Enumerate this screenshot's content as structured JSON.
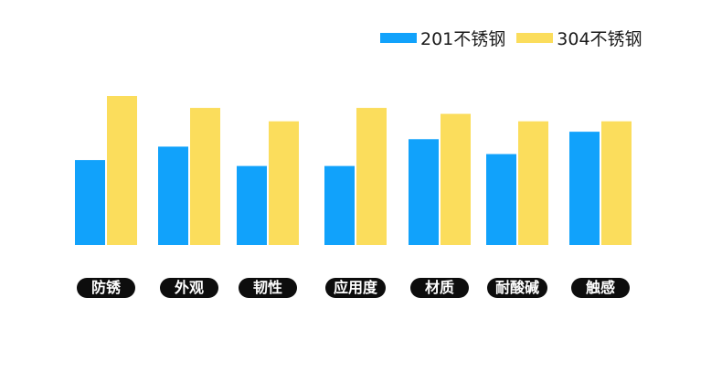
{
  "colors": {
    "series_201": "#11a2fb",
    "series_304": "#fbdd5c"
  },
  "chart_data": {
    "type": "bar",
    "categories": [
      "防锈",
      "外观",
      "韧性",
      "应用度",
      "材质",
      "耐酸碱",
      "触感"
    ],
    "series": [
      {
        "name": "201不锈钢",
        "values": [
          57,
          66,
          53,
          53,
          71,
          61,
          76
        ]
      },
      {
        "name": "304不锈钢",
        "values": [
          100,
          92,
          83,
          92,
          88,
          83,
          83
        ]
      }
    ],
    "title": "",
    "xlabel": "",
    "ylabel": "",
    "ylim": [
      0,
      100
    ],
    "grid": false,
    "axes_visible": false,
    "legend_placement": "top-right"
  }
}
